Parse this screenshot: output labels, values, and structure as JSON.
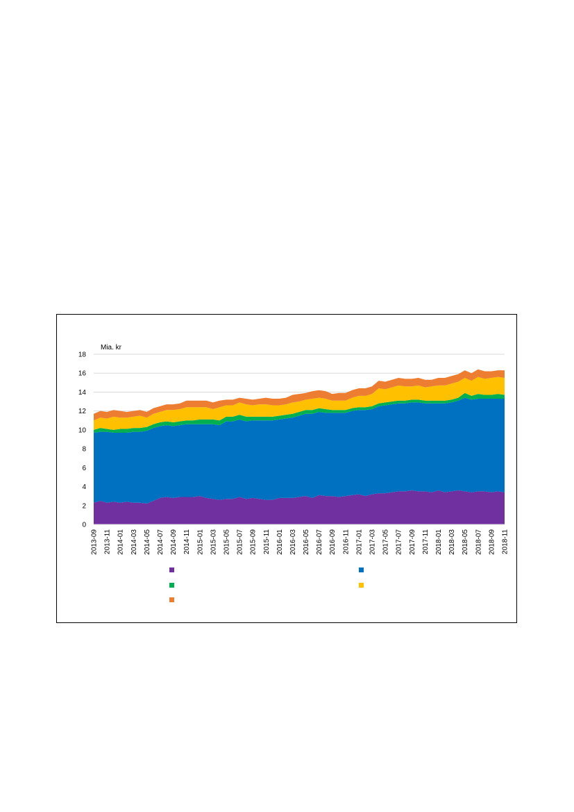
{
  "chart_data": {
    "type": "area",
    "stacked": true,
    "unit_label": "Mia. kr",
    "ylim": [
      0,
      18
    ],
    "y_ticks": [
      0,
      2,
      4,
      6,
      8,
      10,
      12,
      14,
      16,
      18
    ],
    "grid": true,
    "legend_position": "bottom",
    "x": [
      "2013-09",
      "2013-10",
      "2013-11",
      "2013-12",
      "2014-01",
      "2014-02",
      "2014-03",
      "2014-04",
      "2014-05",
      "2014-06",
      "2014-07",
      "2014-08",
      "2014-09",
      "2014-10",
      "2014-11",
      "2014-12",
      "2015-01",
      "2015-02",
      "2015-03",
      "2015-04",
      "2015-05",
      "2015-06",
      "2015-07",
      "2015-08",
      "2015-09",
      "2015-10",
      "2015-11",
      "2015-12",
      "2016-01",
      "2016-02",
      "2016-03",
      "2016-04",
      "2016-05",
      "2016-06",
      "2016-07",
      "2016-08",
      "2016-09",
      "2016-10",
      "2016-11",
      "2016-12",
      "2017-01",
      "2017-02",
      "2017-03",
      "2017-04",
      "2017-05",
      "2017-06",
      "2017-07",
      "2017-08",
      "2017-09",
      "2017-10",
      "2017-11",
      "2017-12",
      "2018-01",
      "2018-02",
      "2018-03",
      "2018-04",
      "2018-05",
      "2018-06",
      "2018-07",
      "2018-08",
      "2018-09",
      "2018-10",
      "2018-11"
    ],
    "x_tick_labels": [
      "2013-09",
      "2013-11",
      "2014-01",
      "2014-03",
      "2014-05",
      "2014-07",
      "2014-09",
      "2014-11",
      "2015-01",
      "2015-03",
      "2015-05",
      "2015-07",
      "2015-09",
      "2015-11",
      "2016-01",
      "2016-03",
      "2016-05",
      "2016-07",
      "2016-09",
      "2016-11",
      "2017-01",
      "2017-03",
      "2017-05",
      "2017-07",
      "2017-09",
      "2017-11",
      "2018-01",
      "2018-03",
      "2018-05",
      "2018-07",
      "2018-09",
      "2018-11"
    ],
    "series": [
      {
        "color": "#7030A0",
        "values": [
          2.3,
          2.5,
          2.3,
          2.4,
          2.3,
          2.4,
          2.3,
          2.3,
          2.2,
          2.5,
          2.8,
          2.9,
          2.8,
          2.9,
          2.9,
          2.9,
          3.0,
          2.8,
          2.7,
          2.6,
          2.7,
          2.7,
          2.9,
          2.7,
          2.8,
          2.7,
          2.6,
          2.6,
          2.8,
          2.8,
          2.8,
          2.9,
          3.0,
          2.8,
          3.1,
          3.0,
          3.0,
          2.9,
          3.0,
          3.1,
          3.2,
          3.0,
          3.2,
          3.3,
          3.3,
          3.4,
          3.5,
          3.5,
          3.6,
          3.5,
          3.5,
          3.4,
          3.6,
          3.4,
          3.5,
          3.6,
          3.5,
          3.4,
          3.5,
          3.5,
          3.4,
          3.5,
          3.4
        ]
      },
      {
        "color": "#0070C0",
        "values": [
          7.4,
          7.3,
          7.5,
          7.3,
          7.4,
          7.3,
          7.5,
          7.5,
          7.7,
          7.7,
          7.6,
          7.6,
          7.6,
          7.6,
          7.7,
          7.7,
          7.6,
          7.8,
          7.9,
          7.9,
          8.2,
          8.2,
          8.2,
          8.2,
          8.2,
          8.3,
          8.4,
          8.4,
          8.3,
          8.4,
          8.5,
          8.6,
          8.7,
          8.9,
          8.8,
          8.8,
          8.8,
          8.9,
          8.8,
          8.9,
          8.9,
          9.1,
          9.0,
          9.2,
          9.3,
          9.3,
          9.3,
          9.3,
          9.3,
          9.4,
          9.3,
          9.4,
          9.2,
          9.4,
          9.4,
          9.5,
          9.9,
          9.8,
          9.8,
          9.8,
          9.9,
          9.8,
          9.9
        ]
      },
      {
        "color": "#00B050",
        "values": [
          0.3,
          0.4,
          0.3,
          0.3,
          0.4,
          0.4,
          0.4,
          0.4,
          0.4,
          0.4,
          0.4,
          0.4,
          0.4,
          0.4,
          0.4,
          0.4,
          0.5,
          0.5,
          0.5,
          0.5,
          0.5,
          0.5,
          0.5,
          0.5,
          0.4,
          0.4,
          0.4,
          0.4,
          0.4,
          0.4,
          0.4,
          0.4,
          0.4,
          0.4,
          0.4,
          0.4,
          0.3,
          0.3,
          0.3,
          0.3,
          0.3,
          0.3,
          0.3,
          0.3,
          0.3,
          0.3,
          0.3,
          0.3,
          0.3,
          0.3,
          0.3,
          0.3,
          0.3,
          0.3,
          0.3,
          0.3,
          0.5,
          0.4,
          0.5,
          0.4,
          0.4,
          0.5,
          0.4
        ]
      },
      {
        "color": "#FFC000",
        "values": [
          1.0,
          1.1,
          1.1,
          1.4,
          1.2,
          1.2,
          1.2,
          1.3,
          1.0,
          1.1,
          1.1,
          1.2,
          1.3,
          1.3,
          1.4,
          1.4,
          1.3,
          1.3,
          1.1,
          1.4,
          1.2,
          1.2,
          1.3,
          1.3,
          1.2,
          1.3,
          1.3,
          1.2,
          1.1,
          1.1,
          1.2,
          1.1,
          1.1,
          1.2,
          1.1,
          1.1,
          1.0,
          1.0,
          1.0,
          1.1,
          1.2,
          1.2,
          1.3,
          1.6,
          1.4,
          1.5,
          1.6,
          1.5,
          1.4,
          1.5,
          1.4,
          1.5,
          1.6,
          1.6,
          1.7,
          1.7,
          1.6,
          1.6,
          1.8,
          1.7,
          1.8,
          1.8,
          1.8
        ]
      },
      {
        "color": "#ED7D31",
        "values": [
          0.7,
          0.7,
          0.7,
          0.7,
          0.7,
          0.6,
          0.6,
          0.6,
          0.6,
          0.6,
          0.6,
          0.6,
          0.6,
          0.6,
          0.7,
          0.7,
          0.7,
          0.7,
          0.7,
          0.7,
          0.6,
          0.6,
          0.5,
          0.6,
          0.6,
          0.6,
          0.7,
          0.7,
          0.7,
          0.7,
          0.8,
          0.8,
          0.7,
          0.8,
          0.8,
          0.8,
          0.7,
          0.8,
          0.8,
          0.8,
          0.8,
          0.8,
          0.8,
          0.8,
          0.8,
          0.8,
          0.8,
          0.8,
          0.8,
          0.8,
          0.8,
          0.7,
          0.8,
          0.8,
          0.8,
          0.8,
          0.8,
          0.8,
          0.8,
          0.8,
          0.7,
          0.7,
          0.8
        ]
      }
    ],
    "legend_swatches": [
      {
        "color": "#7030A0"
      },
      {
        "color": "#0070C0"
      },
      {
        "color": "#00B050"
      },
      {
        "color": "#FFC000"
      },
      {
        "color": "#ED7D31"
      }
    ]
  }
}
